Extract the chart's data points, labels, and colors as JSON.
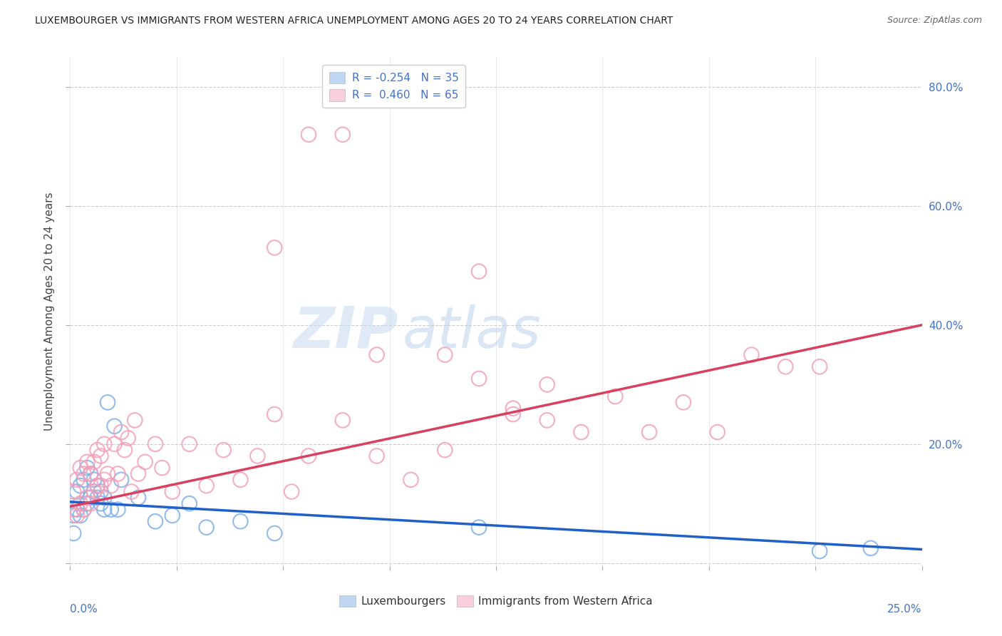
{
  "title": "LUXEMBOURGER VS IMMIGRANTS FROM WESTERN AFRICA UNEMPLOYMENT AMONG AGES 20 TO 24 YEARS CORRELATION CHART",
  "source": "Source: ZipAtlas.com",
  "ylabel": "Unemployment Among Ages 20 to 24 years",
  "xlim": [
    0.0,
    0.25
  ],
  "ylim": [
    -0.005,
    0.85
  ],
  "blue_color": "#80b0e8",
  "pink_color": "#f4a0b8",
  "blue_line_color": "#2060c8",
  "pink_line_color": "#d84060",
  "legend_blue_label": "R = -0.254   N = 35",
  "legend_pink_label": "R =  0.460   N = 65",
  "legend_lux": "Luxembourgers",
  "legend_imm": "Immigrants from Western Africa",
  "blue_intercept": 0.103,
  "blue_slope": -0.32,
  "pink_intercept": 0.095,
  "pink_slope": 1.22,
  "blue_x": [
    0.001,
    0.001,
    0.002,
    0.002,
    0.003,
    0.003,
    0.004,
    0.004,
    0.005,
    0.005,
    0.006,
    0.006,
    0.007,
    0.007,
    0.008,
    0.008,
    0.009,
    0.009,
    0.01,
    0.01,
    0.011,
    0.012,
    0.013,
    0.014,
    0.015,
    0.02,
    0.025,
    0.03,
    0.035,
    0.04,
    0.05,
    0.06,
    0.12,
    0.22,
    0.235
  ],
  "blue_y": [
    0.08,
    0.05,
    0.09,
    0.12,
    0.08,
    0.13,
    0.09,
    0.14,
    0.1,
    0.16,
    0.11,
    0.15,
    0.12,
    0.14,
    0.11,
    0.13,
    0.1,
    0.12,
    0.09,
    0.11,
    0.27,
    0.09,
    0.23,
    0.09,
    0.14,
    0.11,
    0.07,
    0.08,
    0.1,
    0.06,
    0.07,
    0.05,
    0.06,
    0.02,
    0.025
  ],
  "pink_x": [
    0.001,
    0.001,
    0.002,
    0.002,
    0.003,
    0.003,
    0.004,
    0.004,
    0.005,
    0.005,
    0.006,
    0.006,
    0.007,
    0.007,
    0.008,
    0.008,
    0.009,
    0.009,
    0.01,
    0.01,
    0.011,
    0.012,
    0.013,
    0.014,
    0.015,
    0.016,
    0.017,
    0.018,
    0.019,
    0.02,
    0.022,
    0.025,
    0.027,
    0.03,
    0.035,
    0.04,
    0.045,
    0.05,
    0.055,
    0.06,
    0.065,
    0.07,
    0.08,
    0.09,
    0.1,
    0.11,
    0.12,
    0.13,
    0.14,
    0.15,
    0.16,
    0.17,
    0.18,
    0.19,
    0.2,
    0.21,
    0.12,
    0.11,
    0.13,
    0.14,
    0.06,
    0.07,
    0.08,
    0.09,
    0.22
  ],
  "pink_y": [
    0.09,
    0.12,
    0.08,
    0.14,
    0.1,
    0.16,
    0.09,
    0.15,
    0.11,
    0.17,
    0.1,
    0.15,
    0.12,
    0.17,
    0.13,
    0.19,
    0.13,
    0.18,
    0.14,
    0.2,
    0.15,
    0.13,
    0.2,
    0.15,
    0.22,
    0.19,
    0.21,
    0.12,
    0.24,
    0.15,
    0.17,
    0.2,
    0.16,
    0.12,
    0.2,
    0.13,
    0.19,
    0.14,
    0.18,
    0.25,
    0.12,
    0.18,
    0.24,
    0.18,
    0.14,
    0.19,
    0.31,
    0.25,
    0.3,
    0.22,
    0.28,
    0.22,
    0.27,
    0.22,
    0.35,
    0.33,
    0.49,
    0.35,
    0.26,
    0.24,
    0.53,
    0.72,
    0.72,
    0.35,
    0.33
  ]
}
